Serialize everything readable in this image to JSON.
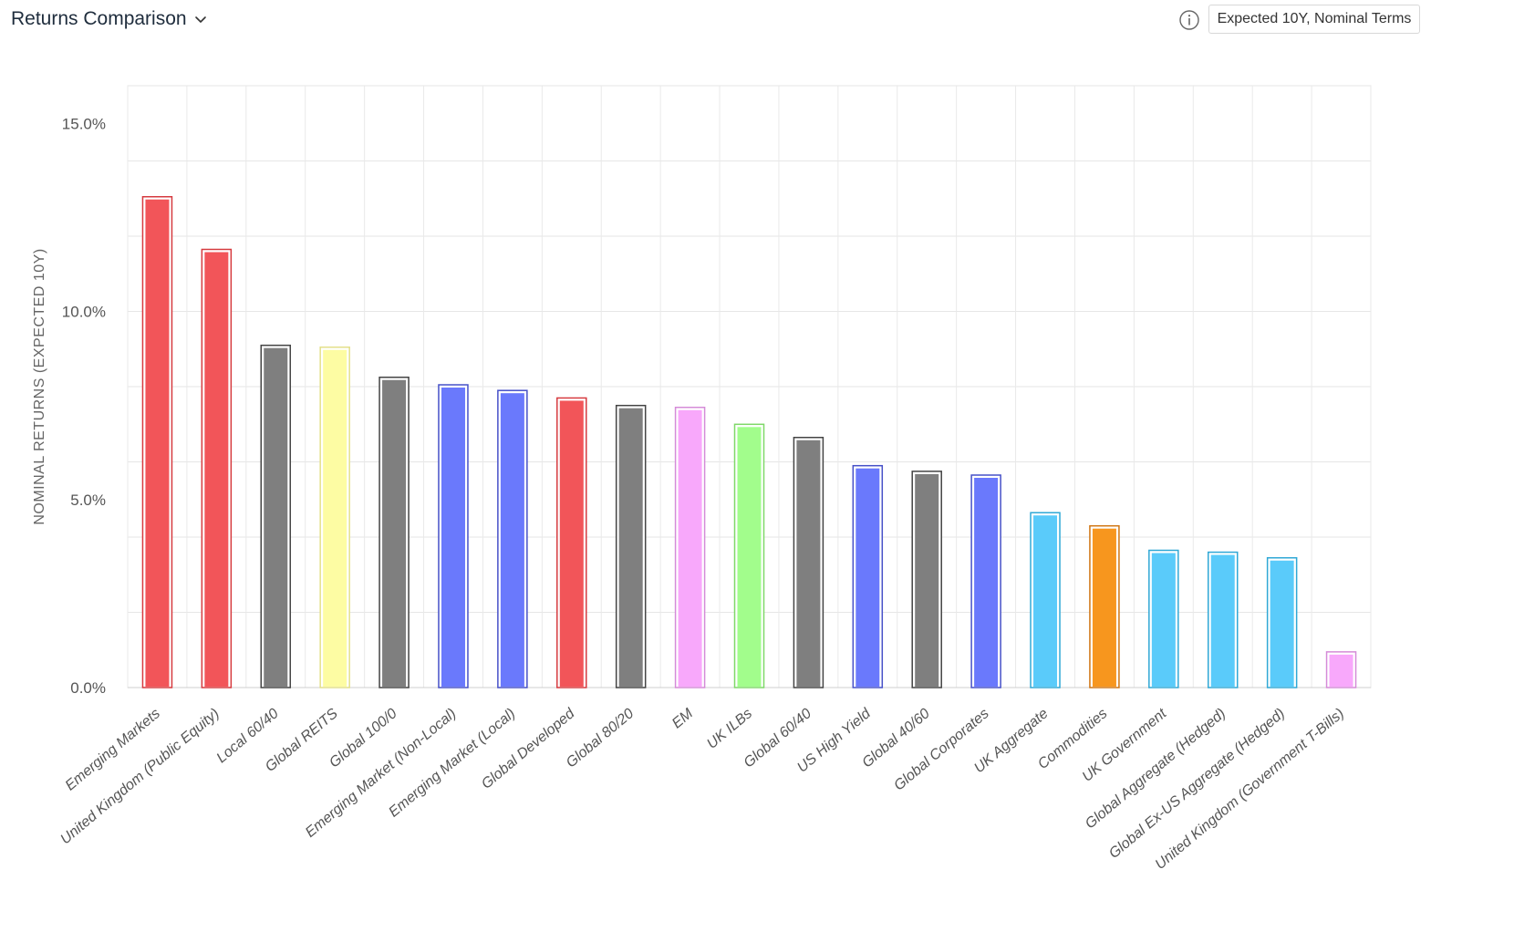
{
  "header": {
    "title": "Returns Comparison",
    "mode_label": "Expected 10Y, Nominal Terms",
    "icons": {
      "dropdown": "chevron-down-icon",
      "info": "info-icon"
    }
  },
  "chart_data": {
    "type": "bar",
    "title": "",
    "xlabel": "",
    "ylabel": "NOMINAL RETURNS (EXPECTED 10Y)",
    "ylim": [
      0,
      16
    ],
    "yticks": [
      {
        "value": 0,
        "label": "0.0%"
      },
      {
        "value": 5,
        "label": "5.0%"
      },
      {
        "value": 10,
        "label": "10.0%"
      },
      {
        "value": 15,
        "label": "15.0%"
      }
    ],
    "grid": true,
    "legend": "none",
    "categories": [
      "Emerging Markets",
      "United Kingdom (Public Equity)",
      "Local 60/40",
      "Global REITS",
      "Global 100/0",
      "Emerging Market (Non-Local)",
      "Emerging Market (Local)",
      "Global Developed",
      "Global 80/20",
      "EM",
      "UK ILBs",
      "Global 60/40",
      "US High Yield",
      "Global 40/60",
      "Global Corporates",
      "UK Aggregate",
      "Commodities",
      "UK Government",
      "Global Aggregate (Hedged)",
      "Global Ex-US Aggregate (Hedged)",
      "United Kingdom (Government T-Bills)"
    ],
    "values": [
      13.0,
      11.6,
      9.05,
      9.0,
      8.2,
      8.0,
      7.85,
      7.65,
      7.45,
      7.4,
      6.95,
      6.6,
      5.85,
      5.7,
      5.6,
      4.6,
      4.25,
      3.6,
      3.55,
      3.4,
      0.9
    ],
    "colors": [
      "#f25559",
      "#f25559",
      "#7f7f7f",
      "#fdfca3",
      "#7f7f7f",
      "#6a79fc",
      "#6a79fc",
      "#f25559",
      "#7f7f7f",
      "#f8a8fb",
      "#a2fd8c",
      "#7f7f7f",
      "#6a79fc",
      "#7f7f7f",
      "#6a79fc",
      "#5acbfa",
      "#f7961e",
      "#5acbfa",
      "#5acbfa",
      "#5acbfa",
      "#f8a8fb"
    ],
    "outline_colors": [
      "#d63a3f",
      "#d63a3f",
      "#444444",
      "#e3e08a",
      "#444444",
      "#4650c8",
      "#4650c8",
      "#d63a3f",
      "#444444",
      "#d58bd8",
      "#7fd868",
      "#444444",
      "#4650c8",
      "#444444",
      "#4650c8",
      "#2fa8d6",
      "#d07512",
      "#2fa8d6",
      "#2fa8d6",
      "#2fa8d6",
      "#d58bd8"
    ]
  }
}
